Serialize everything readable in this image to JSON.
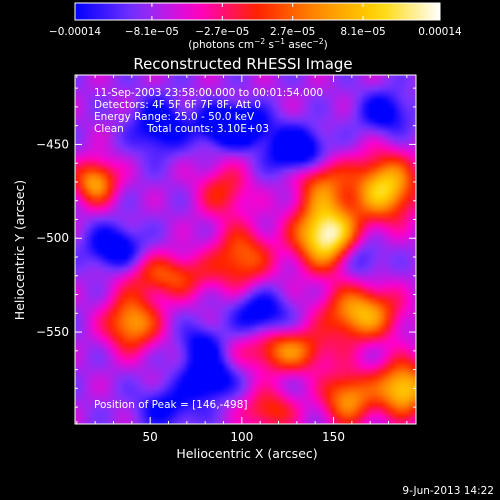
{
  "chart_data": {
    "type": "heatmap",
    "title": "Reconstructed RHESSI Image",
    "xlabel": "Heliocentric X (arcsec)",
    "ylabel": "Heliocentric Y (arcsec)",
    "xlim": [
      9,
      195
    ],
    "ylim": [
      -599,
      -413
    ],
    "xticks": [
      50,
      100,
      150
    ],
    "yticks": [
      -450,
      -500,
      -550
    ],
    "colorbar": {
      "min": -0.00014,
      "max": 0.00014,
      "tick_values": [
        -0.00014,
        -8.1e-05,
        -2.7e-05,
        2.7e-05,
        8.1e-05,
        0.00014
      ],
      "tick_labels": [
        "−0.00014",
        "−8.1e−05",
        "−2.7e−05",
        "2.7e−05",
        "8.1e−05",
        "0.00014"
      ],
      "label_main": "(photons cm",
      "label_exp1": "−2",
      "label_mid": " s",
      "label_exp2": "−1",
      "label_tail": " asec",
      "label_exp3": "−2",
      "label_close": ")",
      "colors": [
        "#0000ff",
        "#7a33ff",
        "#ff00cc",
        "#ff2200",
        "#ff8c00",
        "#ffd700",
        "#ffffff"
      ]
    },
    "annotations": {
      "line1": "11-Sep-2003 23:58:00.000 to 00:01:54.000",
      "line2": "Detectors: 4F 5F 6F 7F 8F, Att 0",
      "line3": "Energy Range: 25.0 - 50.0 keV",
      "line4a": "Clean",
      "line4b": "Total counts: 3.10E+03",
      "peak": "Position of Peak = [146,-498]"
    },
    "peak": {
      "x": 146,
      "y": -498,
      "value": 0.00014
    },
    "sources": [
      {
        "x": 146,
        "y": -498,
        "sx": 12,
        "sy": 12,
        "a": 1.0
      },
      {
        "x": 178,
        "y": -473,
        "sx": 12,
        "sy": 12,
        "a": 0.8
      },
      {
        "x": 144,
        "y": -470,
        "sx": 10,
        "sy": 10,
        "a": 0.45
      },
      {
        "x": 100,
        "y": -510,
        "sx": 11,
        "sy": 11,
        "a": 0.5
      },
      {
        "x": 125,
        "y": -560,
        "sx": 16,
        "sy": 8,
        "a": 0.55
      },
      {
        "x": 165,
        "y": -540,
        "sx": 14,
        "sy": 10,
        "a": 0.7
      },
      {
        "x": 60,
        "y": -520,
        "sx": 16,
        "sy": 8,
        "a": 0.45
      },
      {
        "x": 40,
        "y": -545,
        "sx": 10,
        "sy": 10,
        "a": 0.65
      },
      {
        "x": 20,
        "y": -470,
        "sx": 8,
        "sy": 8,
        "a": 0.65
      },
      {
        "x": 188,
        "y": -580,
        "sx": 10,
        "sy": 10,
        "a": 0.8
      },
      {
        "x": 158,
        "y": -585,
        "sx": 10,
        "sy": 10,
        "a": 0.6
      },
      {
        "x": 90,
        "y": -475,
        "sx": 10,
        "sy": 10,
        "a": 0.35
      },
      {
        "x": 115,
        "y": -592,
        "sx": 10,
        "sy": 8,
        "a": 0.4
      },
      {
        "x": 78,
        "y": -558,
        "sx": 8,
        "sy": 8,
        "a": -0.35
      },
      {
        "x": 95,
        "y": -440,
        "sx": 12,
        "sy": 7,
        "a": -0.75
      },
      {
        "x": 130,
        "y": -453,
        "sx": 11,
        "sy": 8,
        "a": -0.55
      },
      {
        "x": 55,
        "y": -440,
        "sx": 10,
        "sy": 10,
        "a": -0.4
      },
      {
        "x": 30,
        "y": -505,
        "sx": 10,
        "sy": 8,
        "a": -0.45
      },
      {
        "x": 82,
        "y": -575,
        "sx": 9,
        "sy": 7,
        "a": -0.5
      },
      {
        "x": 110,
        "y": -540,
        "sx": 10,
        "sy": 8,
        "a": -0.4
      },
      {
        "x": 178,
        "y": -433,
        "sx": 10,
        "sy": 8,
        "a": -0.35
      },
      {
        "x": 165,
        "y": -510,
        "sx": 8,
        "sy": 8,
        "a": -0.3
      },
      {
        "x": 60,
        "y": -590,
        "sx": 12,
        "sy": 8,
        "a": -0.3
      }
    ]
  },
  "footer": {
    "timestamp": "9-Jun-2013 14:22"
  }
}
